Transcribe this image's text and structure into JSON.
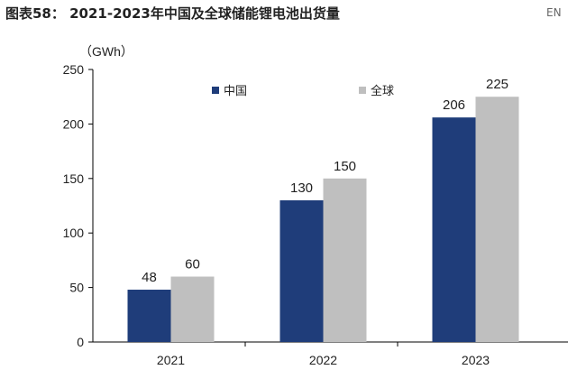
{
  "header": {
    "title": "图表58： 2021-2023年中国及全球储能锂电池出货量",
    "lang_button": "EN"
  },
  "chart_data": {
    "type": "bar",
    "title": "2021-2023年中国及全球储能锂电池出货量",
    "ylabel": "（GWh）",
    "categories": [
      "2021",
      "2022",
      "2023"
    ],
    "series": [
      {
        "name": "中国",
        "values": [
          48,
          130,
          206
        ],
        "color": "#1f3d7a"
      },
      {
        "name": "全球",
        "values": [
          60,
          150,
          225
        ],
        "color": "#bfbfbf"
      }
    ],
    "ylim": [
      0,
      250
    ],
    "yticks": [
      0,
      50,
      100,
      150,
      200,
      250
    ],
    "grid": false,
    "legend": "top"
  }
}
